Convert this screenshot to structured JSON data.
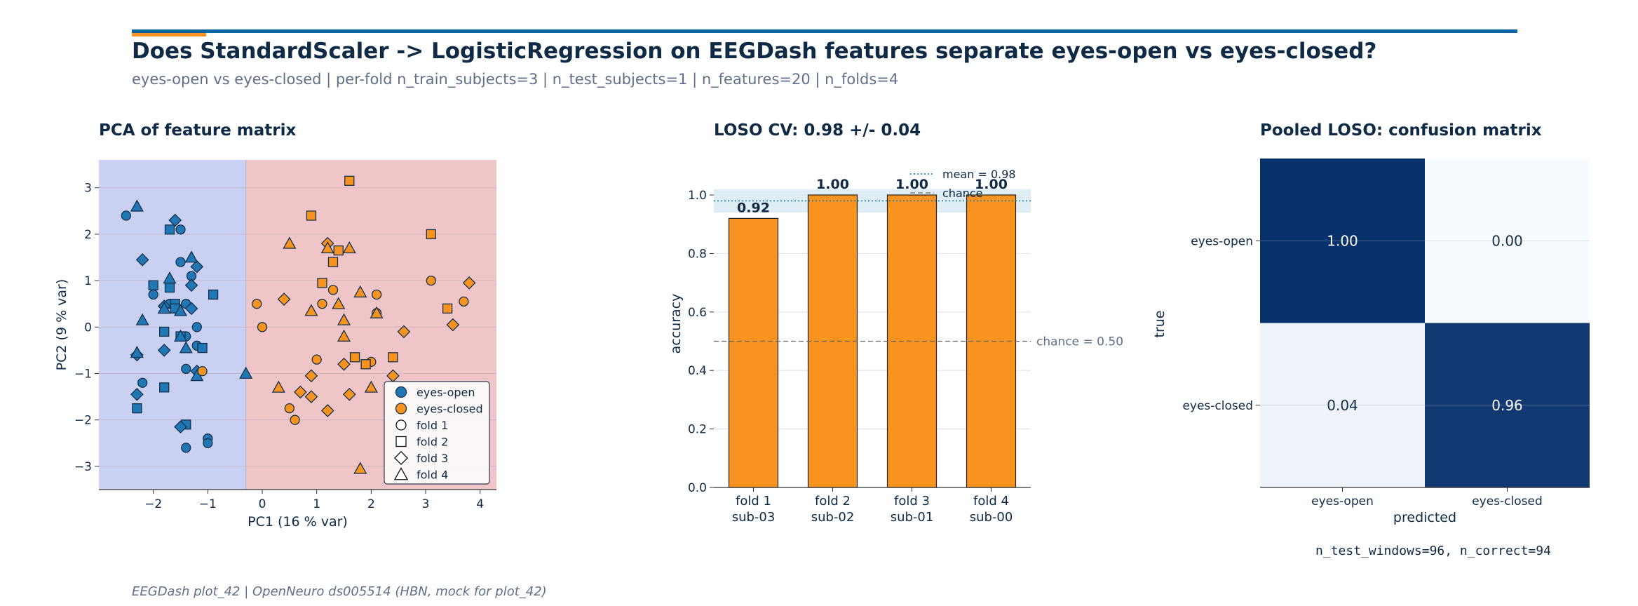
{
  "header": {
    "title": "Does StandardScaler -> LogisticRegression on EEGDash features separate eyes-open vs eyes-closed?",
    "subtitle": "eyes-open vs eyes-closed | per-fold n_train_subjects=3 | n_test_subjects=1 | n_features=20 | n_folds=4",
    "accent_color": "#f7931e",
    "rule_color": "#0b65a0"
  },
  "footer": {
    "caption": "EEGDash plot_42 | OpenNeuro ds005514 (HBN, mock for plot_42)"
  },
  "chart_data": [
    {
      "type": "scatter",
      "title": "PCA of feature matrix",
      "xlabel": "PC1 (16 % var)",
      "ylabel": "PC2 (9 % var)",
      "xlim": [
        -3.0,
        4.3
      ],
      "ylim": [
        -3.5,
        3.6
      ],
      "xticks": [
        "−2",
        "−1",
        "0",
        "1",
        "2",
        "3",
        "4"
      ],
      "xtick_values": [
        -2,
        -1,
        0,
        1,
        2,
        3,
        4
      ],
      "yticks": [
        "−3",
        "−2",
        "−1",
        "0",
        "1",
        "2",
        "3"
      ],
      "ytick_values": [
        -3,
        -2,
        -1,
        0,
        1,
        2,
        3
      ],
      "grid": "horizontal",
      "background_regions": [
        {
          "class": "eyes-open",
          "color": "#c9d0f2"
        },
        {
          "class": "eyes-closed",
          "color": "#efc5c7"
        }
      ],
      "decision_boundary_x": -0.3,
      "legend_position": "bottom-right",
      "legend": [
        {
          "label": "eyes-open",
          "kind": "class",
          "color": "#1f77b4"
        },
        {
          "label": "eyes-closed",
          "kind": "class",
          "color": "#f7931e"
        },
        {
          "label": "fold 1",
          "kind": "fold",
          "marker": "circle"
        },
        {
          "label": "fold 2",
          "kind": "fold",
          "marker": "square"
        },
        {
          "label": "fold 3",
          "kind": "fold",
          "marker": "diamond"
        },
        {
          "label": "fold 4",
          "kind": "fold",
          "marker": "triangle"
        }
      ],
      "series": [
        {
          "class": "eyes-open",
          "fold": 1,
          "marker": "circle",
          "color": "#1f77b4",
          "points": [
            [
              -2.5,
              2.4
            ],
            [
              -1.5,
              2.1
            ],
            [
              -1.5,
              1.4
            ],
            [
              -1.3,
              1.1
            ],
            [
              -2.0,
              0.7
            ],
            [
              -1.7,
              0.5
            ],
            [
              -1.4,
              0.5
            ],
            [
              -1.2,
              0.0
            ],
            [
              -1.4,
              -0.2
            ],
            [
              -1.2,
              -0.4
            ],
            [
              -1.4,
              -0.9
            ],
            [
              -2.2,
              -1.2
            ],
            [
              -1.0,
              -2.4
            ],
            [
              -1.0,
              -2.5
            ],
            [
              -1.4,
              -2.6
            ]
          ]
        },
        {
          "class": "eyes-open",
          "fold": 2,
          "marker": "square",
          "color": "#1f77b4",
          "points": [
            [
              -1.7,
              2.1
            ],
            [
              -2.0,
              0.9
            ],
            [
              -1.7,
              0.85
            ],
            [
              -1.6,
              0.5
            ],
            [
              -1.6,
              0.4
            ],
            [
              -0.9,
              0.7
            ],
            [
              -1.8,
              -0.1
            ],
            [
              -1.5,
              -0.2
            ],
            [
              -1.1,
              -0.45
            ],
            [
              -1.8,
              -1.3
            ],
            [
              -2.3,
              -1.75
            ],
            [
              -1.4,
              -2.1
            ]
          ]
        },
        {
          "class": "eyes-open",
          "fold": 3,
          "marker": "diamond",
          "color": "#1f77b4",
          "points": [
            [
              -1.6,
              2.3
            ],
            [
              -2.2,
              1.45
            ],
            [
              -1.2,
              1.3
            ],
            [
              -1.3,
              0.9
            ],
            [
              -1.8,
              0.45
            ],
            [
              -1.3,
              0.4
            ],
            [
              -2.3,
              -0.6
            ],
            [
              -1.8,
              -0.5
            ],
            [
              -1.2,
              -0.95
            ],
            [
              -2.3,
              -1.45
            ],
            [
              -1.5,
              -2.15
            ]
          ]
        },
        {
          "class": "eyes-open",
          "fold": 4,
          "marker": "triangle",
          "color": "#1f77b4",
          "points": [
            [
              -2.3,
              2.6
            ],
            [
              -1.3,
              1.5
            ],
            [
              -1.7,
              1.05
            ],
            [
              -1.8,
              0.4
            ],
            [
              -1.5,
              0.35
            ],
            [
              -2.2,
              0.15
            ],
            [
              -1.5,
              -0.2
            ],
            [
              -1.4,
              -0.45
            ],
            [
              -2.3,
              -0.55
            ],
            [
              -1.2,
              -1.05
            ],
            [
              -0.3,
              -1.0
            ]
          ]
        },
        {
          "class": "eyes-closed",
          "fold": 1,
          "marker": "circle",
          "color": "#f7931e",
          "points": [
            [
              1.3,
              0.8
            ],
            [
              3.1,
              1.0
            ],
            [
              2.1,
              0.7
            ],
            [
              -0.1,
              0.5
            ],
            [
              1.1,
              0.5
            ],
            [
              3.7,
              0.55
            ],
            [
              2.1,
              0.3
            ],
            [
              0.0,
              0.0
            ],
            [
              1.0,
              -0.7
            ],
            [
              2.0,
              -0.75
            ],
            [
              -1.1,
              -0.95
            ],
            [
              0.5,
              -1.75
            ],
            [
              0.6,
              -2.0
            ]
          ]
        },
        {
          "class": "eyes-closed",
          "fold": 2,
          "marker": "square",
          "color": "#f7931e",
          "points": [
            [
              1.6,
              3.15
            ],
            [
              0.9,
              2.4
            ],
            [
              3.1,
              2.0
            ],
            [
              1.4,
              1.65
            ],
            [
              1.3,
              1.4
            ],
            [
              1.1,
              0.95
            ],
            [
              3.4,
              0.4
            ],
            [
              1.7,
              -0.65
            ],
            [
              1.9,
              -0.8
            ],
            [
              2.4,
              -0.65
            ]
          ]
        },
        {
          "class": "eyes-closed",
          "fold": 3,
          "marker": "diamond",
          "color": "#f7931e",
          "points": [
            [
              1.2,
              1.8
            ],
            [
              3.8,
              0.95
            ],
            [
              0.4,
              0.6
            ],
            [
              3.5,
              0.05
            ],
            [
              2.6,
              -0.1
            ],
            [
              1.5,
              -0.8
            ],
            [
              2.4,
              -1.05
            ],
            [
              0.9,
              -1.05
            ],
            [
              0.7,
              -1.4
            ],
            [
              0.9,
              -1.5
            ],
            [
              1.6,
              -1.45
            ],
            [
              1.2,
              -1.8
            ]
          ]
        },
        {
          "class": "eyes-closed",
          "fold": 4,
          "marker": "triangle",
          "color": "#f7931e",
          "points": [
            [
              0.5,
              1.8
            ],
            [
              1.2,
              1.7
            ],
            [
              1.6,
              1.7
            ],
            [
              1.8,
              0.75
            ],
            [
              0.9,
              0.35
            ],
            [
              1.4,
              0.5
            ],
            [
              1.5,
              0.15
            ],
            [
              2.1,
              0.3
            ],
            [
              1.5,
              -0.2
            ],
            [
              0.3,
              -1.3
            ],
            [
              2.0,
              -1.3
            ],
            [
              1.8,
              -3.05
            ]
          ]
        }
      ]
    },
    {
      "type": "bar",
      "title": "LOSO CV: 0.98 +/- 0.04",
      "ylabel": "accuracy",
      "categories": [
        "fold 1\nsub-03",
        "fold 2\nsub-02",
        "fold 3\nsub-01",
        "fold 4\nsub-00"
      ],
      "values": [
        0.92,
        1.0,
        1.0,
        1.0
      ],
      "data_labels": [
        "0.92",
        "1.00",
        "1.00",
        "1.00"
      ],
      "ylim": [
        0.0,
        1.12
      ],
      "yticks": [
        "0.0",
        "0.2",
        "0.4",
        "0.6",
        "0.8",
        "1.0"
      ],
      "ytick_values": [
        0.0,
        0.2,
        0.4,
        0.6,
        0.8,
        1.0
      ],
      "bar_color": "#f7931e",
      "mean": 0.98,
      "std": 0.04,
      "mean_label": "mean = 0.98",
      "chance": 0.5,
      "chance_legend_label": "chance",
      "chance_annotation": "chance = 0.50",
      "legend_position": "top-right",
      "grid": "horizontal"
    },
    {
      "type": "heatmap",
      "title": "Pooled LOSO: confusion matrix",
      "xlabel": "predicted",
      "ylabel": "true",
      "row_labels": [
        "eyes-open",
        "eyes-closed"
      ],
      "col_labels": [
        "eyes-open",
        "eyes-closed"
      ],
      "values": [
        [
          1.0,
          0.0
        ],
        [
          0.04,
          0.96
        ]
      ],
      "cell_labels": [
        [
          "1.00",
          "0.00"
        ],
        [
          "0.04",
          "0.96"
        ]
      ],
      "colormap": "Blues",
      "annotation": "n_test_windows=96, n_correct=94"
    }
  ]
}
